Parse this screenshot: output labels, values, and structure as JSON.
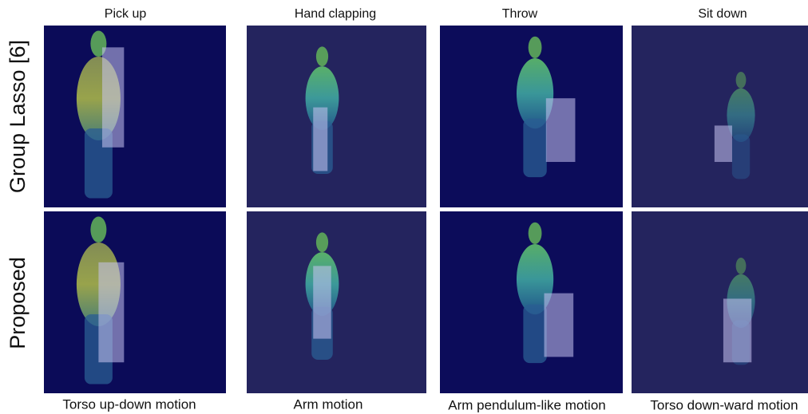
{
  "columns": [
    "Pick up",
    "Hand clapping",
    "Throw",
    "Sit down"
  ],
  "rows": [
    "Group Lasso [6]",
    "Proposed"
  ],
  "captions": [
    "Torso up-down motion",
    "Arm motion",
    "Arm pendulum-like motion",
    "Torso down-ward motion"
  ]
}
